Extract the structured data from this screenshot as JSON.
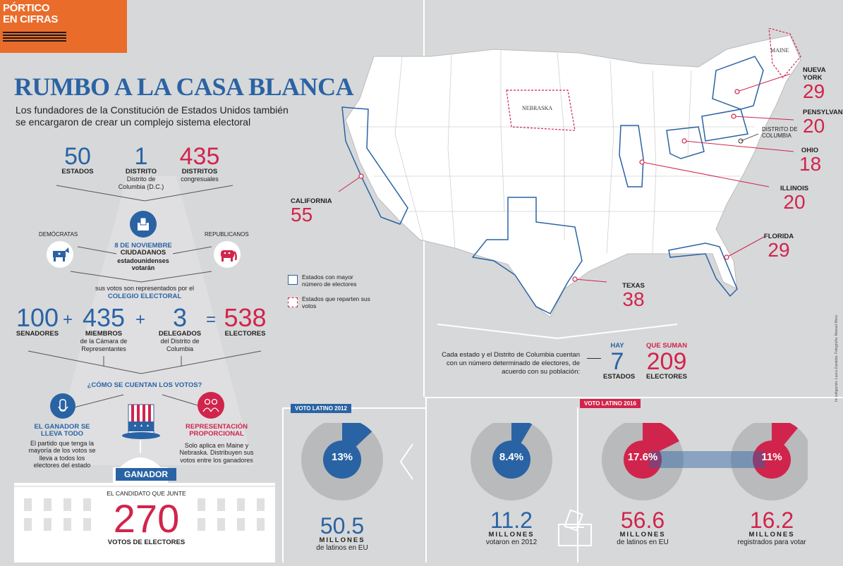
{
  "brand": {
    "line1": "PÓRTICO",
    "line2": "EN CIFRAS"
  },
  "title": "RUMBO A LA CASA BLANCA",
  "subtitle": "Los fundadores de la Constitución de Estados Unidos también se encargaron de crear un complejo sistema electoral",
  "top_stats": [
    {
      "value": "50",
      "label": "ESTADOS",
      "sub": ""
    },
    {
      "value": "1",
      "label": "DISTRITO",
      "sub": "Distrito de Columbia (D.C.)"
    },
    {
      "value": "435",
      "label": "DISTRITOS",
      "sub": "congresuales"
    }
  ],
  "vote": {
    "date": "8 DE NOVIEMBRE",
    "line1": "CIUDADANOS",
    "line2": "estadounidenses",
    "line3": "votarán"
  },
  "parties": {
    "dem": "DEMÓCRATAS",
    "rep": "REPUBLICANOS"
  },
  "college": {
    "intro": "sus votos son representados por el",
    "name": "COLEGIO ELECTORAL"
  },
  "equation": {
    "senators": {
      "value": "100",
      "label": "SENADORES"
    },
    "plus1": "+",
    "members": {
      "value": "435",
      "label": "MIEMBROS",
      "sub": "de la Cámara de Representantes"
    },
    "plus2": "+",
    "delegates": {
      "value": "3",
      "label": "DELEGADOS",
      "sub": "del Distrito de Columbia"
    },
    "eq": "=",
    "electors": {
      "value": "538",
      "label": "ELECTORES"
    }
  },
  "count": {
    "question": "¿CÓMO SE CUENTAN LOS VOTOS?",
    "winner_title": "EL GANADOR SE LLEVA TODO",
    "winner_text": "El partido que tenga la mayoría de los votos se lleva a todos los electores del estado",
    "prop_title": "REPRESENTACIÓN PROPORCIONAL",
    "prop_text": "Solo aplica en Maine y Nebraska. Distribuyen sus votos entre los ganadores"
  },
  "winner": {
    "banner": "GANADOR",
    "line": "EL CANDIDATO QUE JUNTE",
    "value": "270",
    "label": "VOTOS DE ELECTORES"
  },
  "map": {
    "states": [
      {
        "name": "NUEVA YORK",
        "value": "29"
      },
      {
        "name": "PENSYLVANIA",
        "value": "20"
      },
      {
        "name": "DISTRITO DE COLUMBIA",
        "value": ""
      },
      {
        "name": "OHIO",
        "value": "18"
      },
      {
        "name": "ILLINOIS",
        "value": "20"
      },
      {
        "name": "FLORIDA",
        "value": "29"
      },
      {
        "name": "TEXAS",
        "value": "38"
      },
      {
        "name": "CALIFORNIA",
        "value": "55"
      }
    ],
    "maine": "MAINE",
    "nebraska": "NEBRASKA",
    "legend": [
      {
        "text": "Estados con mayor número de electores"
      },
      {
        "text": "Estados que reparten sus votos"
      }
    ],
    "credit": "Investigación: Laura Zavaleta. Fotografía: Manuel Mora"
  },
  "summary": {
    "text": "Cada estado y el Distrito de Columbia cuentan con un número determinado de electores, de acuerdo con su población:",
    "hay": "HAY",
    "states_value": "7",
    "states_label": "ESTADOS",
    "suman": "QUE SUMAN",
    "electors_value": "209",
    "electors_label": "ELECTORES"
  },
  "latino2012": {
    "tag": "VOTO LATINO 2012",
    "pct": "13%",
    "pct_value": 13,
    "value": "50.5",
    "unit": "MILLONES",
    "label": "de latinos en EU"
  },
  "latino2016": {
    "tag": "VOTO LATINO 2016",
    "voted": {
      "pct": "8.4%",
      "pct_value": 8.4,
      "value": "11.2",
      "unit": "MILLONES",
      "label": "votaron en 2012"
    },
    "latinos": {
      "pct": "17.6%",
      "pct_value": 17.6,
      "value": "56.6",
      "unit": "MILLONES",
      "label": "de latinos en EU"
    },
    "registered": {
      "pct": "11%",
      "pct_value": 11,
      "value": "16.2",
      "unit": "MILLONES",
      "label": "registrados para votar"
    }
  },
  "colors": {
    "blue": "#2a63a4",
    "red": "#d1244c",
    "orange": "#ea6c2b",
    "gray": "#d7d8d9",
    "ring": "#b9babc"
  }
}
